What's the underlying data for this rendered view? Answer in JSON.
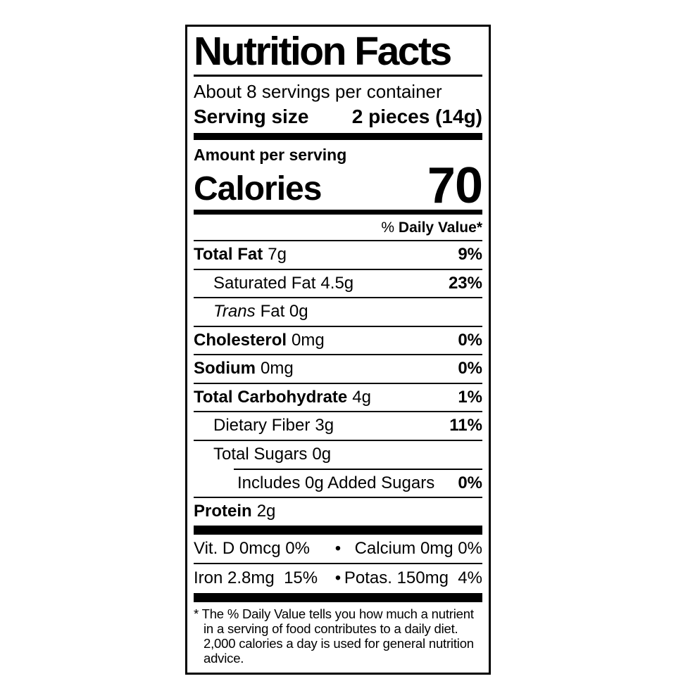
{
  "title": "Nutrition Facts",
  "servings_per_container": "About 8 servings per container",
  "serving_size": {
    "label": "Serving size",
    "value": "2 pieces (14g)"
  },
  "amount_per_serving": "Amount per serving",
  "calories": {
    "label": "Calories",
    "value": "70"
  },
  "daily_value_header": {
    "percent": "% ",
    "text": "Daily Value*"
  },
  "rows": [
    {
      "name": "Total Fat",
      "amount": "7g",
      "dv": "9%"
    },
    {
      "name": "Saturated Fat",
      "amount": "4.5g",
      "dv": "23%"
    },
    {
      "name": "Trans",
      "amount": "Fat 0g",
      "dv": ""
    },
    {
      "name": "Cholesterol",
      "amount": "0mg",
      "dv": "0%"
    },
    {
      "name": "Sodium",
      "amount": "0mg",
      "dv": "0%"
    },
    {
      "name": "Total Carbohydrate",
      "amount": "4g",
      "dv": "1%"
    },
    {
      "name": "Dietary Fiber",
      "amount": "3g",
      "dv": "11%"
    },
    {
      "name": "Total Sugars",
      "amount": "0g",
      "dv": ""
    },
    {
      "name": "Includes 0g Added Sugars",
      "amount": "",
      "dv": "0%"
    },
    {
      "name": "Protein",
      "amount": "2g",
      "dv": ""
    }
  ],
  "micronutrients": {
    "bullet": "•",
    "rows": [
      {
        "left": "Vit. D 0mcg 0%",
        "right": "Calcium 0mg 0%"
      },
      {
        "left": "Iron 2.8mg  15%",
        "right": "Potas. 150mg  4%"
      }
    ]
  },
  "footnote": {
    "marker": "* ",
    "text": "The % Daily Value tells you how much a nutrient in a serving of food contributes to a daily diet. 2,000 calories a day is used for general nutrition advice."
  },
  "colors": {
    "text": "#000000",
    "background": "#ffffff"
  }
}
